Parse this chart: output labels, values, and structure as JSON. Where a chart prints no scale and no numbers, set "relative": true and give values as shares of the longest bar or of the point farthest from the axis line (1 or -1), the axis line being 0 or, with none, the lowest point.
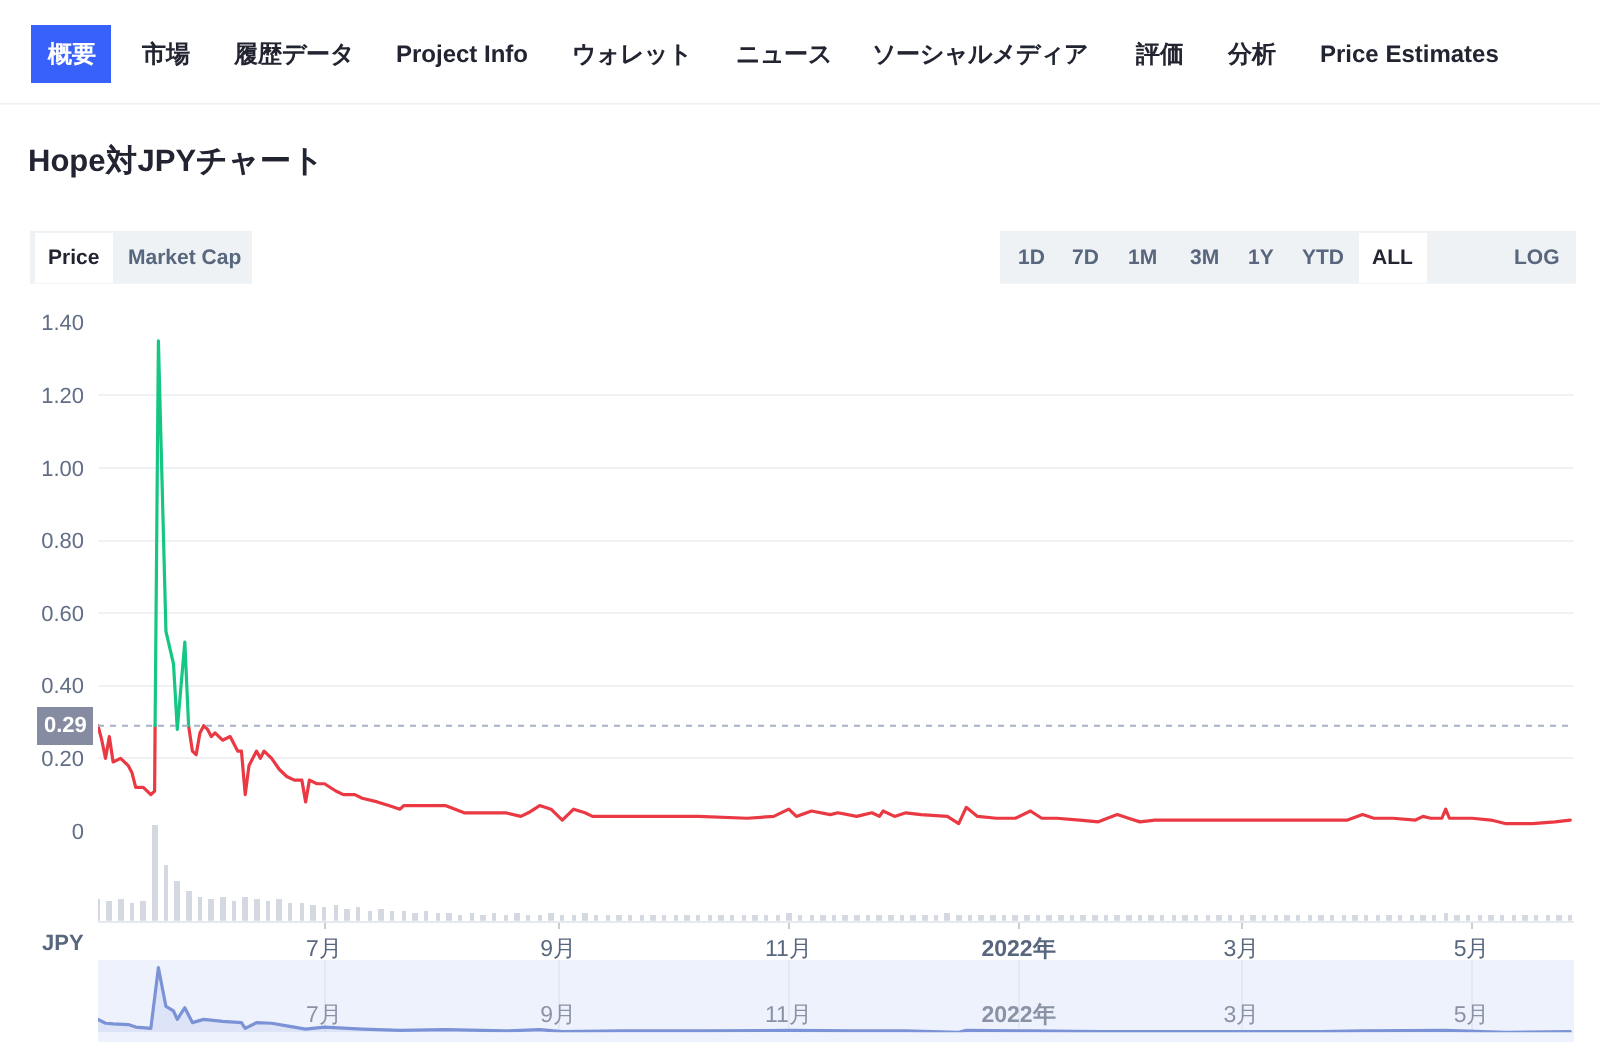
{
  "chart_data": [
    {
      "type": "other",
      "annotations": [
        "概要",
        "市場",
        "履歴データ",
        "Project Info",
        "ウォレット",
        "ニュース",
        "ソーシャルメディア",
        "評価",
        "分析",
        "Price Estimates"
      ]
    },
    {
      "type": "line",
      "title": "Hope対JPYチャート",
      "annotations": [
        "Price",
        "Market Cap",
        "1D",
        "7D",
        "1M",
        "3M",
        "1Y",
        "YTD",
        "ALL",
        "LOG"
      ],
      "xlim": [
        "2021-05-02",
        "2022-05-28"
      ],
      "ylim": [
        0,
        1.4
      ],
      "yticks": [
        0,
        {
          "value": 0.2,
          "label": "0.20"
        },
        {
          "value": 0.4,
          "label": "0.40"
        },
        {
          "value": 0.6,
          "label": "0.60"
        },
        {
          "value": 0.8,
          "label": "0.80"
        },
        {
          "value": 1.0,
          "label": "1.00"
        },
        {
          "value": 1.2,
          "label": "1.20"
        },
        {
          "value": 1.4,
          "label": "1.40"
        }
      ],
      "grid": "y",
      "tick_labels": "y",
      "ref_lines": [
        {
          "axis": "y",
          "value": 0.29,
          "label": "0.29",
          "line_style": "dotted",
          "color": "#a6b0c3"
        }
      ],
      "series": [
        {
          "color": "#ea3943",
          "x": [
            "2021-05-02",
            "2021-05-03",
            "2021-05-04",
            "2021-05-05",
            "2021-05-06",
            "2021-05-08",
            "2021-05-10",
            "2021-05-11",
            "2021-05-12",
            "2021-05-14",
            "2021-05-16",
            "2021-05-17",
            "2021-05-17T03:00",
            "2021-05-20",
            "2021-05-26",
            "2021-05-27",
            "2021-05-28",
            "2021-05-29",
            "2021-05-30",
            "2021-05-31",
            "2021-06-01",
            "2021-06-02",
            "2021-06-04",
            "2021-06-06",
            "2021-06-08",
            "2021-06-09",
            "2021-06-10",
            "2021-06-11",
            "2021-06-13",
            "2021-06-14",
            "2021-06-15",
            "2021-06-17",
            "2021-06-19",
            "2021-06-21",
            "2021-06-23",
            "2021-06-25",
            "2021-06-26",
            "2021-06-27",
            "2021-06-29",
            "2021-07-01",
            "2021-07-04",
            "2021-07-06",
            "2021-07-09",
            "2021-07-11",
            "2021-07-15",
            "2021-07-18",
            "2021-07-21",
            "2021-07-22",
            "2021-07-28",
            "2021-08-02",
            "2021-08-07",
            "2021-08-13",
            "2021-08-18",
            "2021-08-22",
            "2021-08-24",
            "2021-08-27",
            "2021-08-30",
            "2021-09-02",
            "2021-09-05",
            "2021-09-08",
            "2021-09-10",
            "2021-09-18",
            "2021-09-27",
            "2021-10-08",
            "2021-10-21",
            "2021-10-28",
            "2021-11-01",
            "2021-11-03",
            "2021-11-07",
            "2021-11-12",
            "2021-11-14",
            "2021-11-19",
            "2021-11-23",
            "2021-11-25",
            "2021-11-26",
            "2021-11-29",
            "2021-12-02",
            "2021-12-06",
            "2021-12-13",
            "2021-12-16",
            "2021-12-18",
            "2021-12-21",
            "2021-12-26",
            "2021-12-31",
            "2022-01-04",
            "2022-01-07",
            "2022-01-11",
            "2022-01-17",
            "2022-01-22",
            "2022-01-27",
            "2022-01-30",
            "2022-02-02",
            "2022-02-06",
            "2022-02-17",
            "2022-02-28",
            "2022-03-11",
            "2022-03-22",
            "2022-03-29",
            "2022-04-02",
            "2022-04-05",
            "2022-04-10",
            "2022-04-16",
            "2022-04-18",
            "2022-04-20",
            "2022-04-23",
            "2022-04-24",
            "2022-04-25",
            "2022-05-01",
            "2022-05-06",
            "2022-05-10",
            "2022-05-17",
            "2022-05-23",
            "2022-05-27"
          ],
          "values": [
            0.29,
            0.25,
            0.2,
            0.26,
            0.19,
            0.2,
            0.18,
            0.16,
            0.12,
            0.12,
            0.1,
            0.11,
            0.29,
            null,
            0.29,
            0.22,
            0.21,
            0.27,
            0.29,
            0.28,
            0.26,
            0.27,
            0.25,
            0.26,
            0.22,
            0.22,
            0.1,
            0.18,
            0.22,
            0.2,
            0.22,
            0.2,
            0.17,
            0.15,
            0.14,
            0.14,
            0.08,
            0.14,
            0.13,
            0.13,
            0.11,
            0.1,
            0.1,
            0.09,
            0.08,
            0.07,
            0.06,
            0.07,
            0.07,
            0.07,
            0.05,
            0.05,
            0.05,
            0.04,
            0.05,
            0.07,
            0.06,
            0.03,
            0.06,
            0.05,
            0.04,
            0.04,
            0.04,
            0.04,
            0.035,
            0.04,
            0.06,
            0.04,
            0.055,
            0.045,
            0.05,
            0.04,
            0.05,
            0.04,
            0.055,
            0.04,
            0.05,
            0.045,
            0.04,
            0.02,
            0.065,
            0.04,
            0.035,
            0.035,
            0.055,
            0.035,
            0.035,
            0.03,
            0.025,
            0.045,
            0.035,
            0.025,
            0.03,
            0.03,
            0.03,
            0.03,
            0.03,
            0.03,
            0.045,
            0.035,
            0.035,
            0.03,
            0.04,
            0.035,
            0.035,
            0.06,
            0.035,
            0.035,
            0.03,
            0.02,
            0.02,
            0.025,
            0.03
          ]
        },
        {
          "color": "#16c784",
          "x": [
            "2021-05-17T03:00",
            "2021-05-18",
            "2021-05-20",
            "2021-05-22",
            "2021-05-23",
            "2021-05-25",
            "2021-05-26"
          ],
          "values": [
            0.29,
            1.35,
            0.55,
            0.46,
            0.28,
            0.52,
            0.29
          ]
        }
      ]
    },
    {
      "type": "bar",
      "relative": true,
      "color": "#d3d8e1",
      "annotations": [
        "JPY"
      ],
      "tick_labels": "x",
      "xlim": [
        "2021-05-02",
        "2022-05-28"
      ],
      "xticks": [
        {
          "value": "2021-07-01",
          "label": "7月"
        },
        {
          "value": "2021-09-01",
          "label": "9月"
        },
        {
          "value": "2021-11-01",
          "label": "11月"
        },
        {
          "value": "2022-01-01",
          "label": "2022年"
        },
        {
          "value": "2022-03-01",
          "label": "3月"
        },
        {
          "value": "2022-05-01",
          "label": "5月"
        }
      ],
      "x": [
        "2021-05-02",
        "2021-05-05",
        "2021-05-08",
        "2021-05-11",
        "2021-05-14",
        "2021-05-17",
        "2021-05-20",
        "2021-05-23",
        "2021-05-26",
        "2021-05-29",
        "2021-06-01",
        "2021-06-04",
        "2021-06-07",
        "2021-06-10",
        "2021-06-13",
        "2021-06-16",
        "2021-06-19",
        "2021-06-22",
        "2021-06-25",
        "2021-06-28",
        "2021-07-01",
        "2021-07-04",
        "2021-07-07",
        "2021-07-10",
        "2021-07-13",
        "2021-07-16",
        "2021-07-19",
        "2021-07-22",
        "2021-07-25",
        "2021-07-28",
        "2021-07-31",
        "2021-08-03",
        "2021-08-06",
        "2021-08-09",
        "2021-08-12",
        "2021-08-15",
        "2021-08-18",
        "2021-08-21",
        "2021-08-24",
        "2021-08-27",
        "2021-08-30",
        "2021-09-02",
        "2021-09-05",
        "2021-09-08",
        "2021-09-11",
        "2021-09-14",
        "2021-09-17",
        "2021-09-20",
        "2021-09-23",
        "2021-09-26",
        "2021-09-29",
        "2021-10-02",
        "2021-10-05",
        "2021-10-08",
        "2021-10-11",
        "2021-10-14",
        "2021-10-17",
        "2021-10-20",
        "2021-10-23",
        "2021-10-26",
        "2021-10-29",
        "2021-11-01",
        "2021-11-04",
        "2021-11-07",
        "2021-11-10",
        "2021-11-13",
        "2021-11-16",
        "2021-11-19",
        "2021-11-22",
        "2021-11-25",
        "2021-11-28",
        "2021-12-01",
        "2021-12-04",
        "2021-12-07",
        "2021-12-10",
        "2021-12-13",
        "2021-12-16",
        "2021-12-19",
        "2021-12-22",
        "2021-12-25",
        "2021-12-28",
        "2021-12-31",
        "2022-01-03",
        "2022-01-06",
        "2022-01-09",
        "2022-01-12",
        "2022-01-15",
        "2022-01-18",
        "2022-01-21",
        "2022-01-24",
        "2022-01-27",
        "2022-01-30",
        "2022-02-02",
        "2022-02-05",
        "2022-02-08",
        "2022-02-11",
        "2022-02-14",
        "2022-02-17",
        "2022-02-20",
        "2022-02-23",
        "2022-02-26",
        "2022-03-01",
        "2022-03-04",
        "2022-03-07",
        "2022-03-10",
        "2022-03-13",
        "2022-03-16",
        "2022-03-19",
        "2022-03-22",
        "2022-03-25",
        "2022-03-28",
        "2022-03-31",
        "2022-04-03",
        "2022-04-06",
        "2022-04-09",
        "2022-04-12",
        "2022-04-15",
        "2022-04-18",
        "2022-04-21",
        "2022-04-24",
        "2022-04-27",
        "2022-04-30",
        "2022-05-03",
        "2022-05-06",
        "2022-05-09",
        "2022-05-12",
        "2022-05-15",
        "2022-05-18",
        "2022-05-21",
        "2022-05-24",
        "2022-05-27"
      ],
      "values": [
        0.22,
        0.2,
        0.23,
        0.18,
        0.21,
        1.0,
        0.58,
        0.42,
        0.3,
        0.24,
        0.23,
        0.25,
        0.21,
        0.24,
        0.22,
        0.2,
        0.23,
        0.19,
        0.18,
        0.17,
        0.15,
        0.16,
        0.12,
        0.14,
        0.11,
        0.12,
        0.1,
        0.11,
        0.09,
        0.1,
        0.08,
        0.09,
        0.07,
        0.08,
        0.07,
        0.09,
        0.06,
        0.08,
        0.07,
        0.06,
        0.08,
        0.07,
        0.06,
        0.08,
        0.06,
        0.07,
        0.05,
        0.06,
        0.07,
        0.05,
        0.06,
        0.06,
        0.05,
        0.07,
        0.06,
        0.05,
        0.06,
        0.05,
        0.07,
        0.06,
        0.05,
        0.08,
        0.06,
        0.05,
        0.07,
        0.06,
        0.05,
        0.06,
        0.07,
        0.05,
        0.06,
        0.05,
        0.06,
        0.07,
        0.05,
        0.08,
        0.06,
        0.05,
        0.06,
        0.05,
        0.06,
        0.05,
        0.06,
        0.05,
        0.06,
        0.05,
        0.05,
        0.06,
        0.05,
        0.07,
        0.05,
        0.05,
        0.05,
        0.06,
        0.05,
        0.05,
        0.06,
        0.05,
        0.05,
        0.06,
        0.05,
        0.05,
        0.06,
        0.05,
        0.05,
        0.06,
        0.05,
        0.05,
        0.06,
        0.05,
        0.05,
        0.06,
        0.07,
        0.05,
        0.06,
        0.05,
        0.06,
        0.05,
        0.06,
        0.08,
        0.05,
        0.06,
        0.07,
        0.05,
        0.06,
        0.05,
        0.05,
        0.06,
        0.05,
        0.05,
        0.06
      ]
    },
    {
      "type": "area",
      "relative": true,
      "color": "#7b93d6",
      "tick_labels": "x",
      "grid": "x",
      "xlim": [
        "2021-05-02",
        "2022-05-28"
      ],
      "xticks": [
        {
          "value": "2021-07-01",
          "label": "7月"
        },
        {
          "value": "2021-09-01",
          "label": "9月"
        },
        {
          "value": "2021-11-01",
          "label": "11月"
        },
        {
          "value": "2022-01-01",
          "label": "2022年"
        },
        {
          "value": "2022-03-01",
          "label": "3月"
        },
        {
          "value": "2022-05-01",
          "label": "5月"
        }
      ],
      "x": [
        "2021-05-02",
        "2021-05-04",
        "2021-05-06",
        "2021-05-10",
        "2021-05-12",
        "2021-05-16",
        "2021-05-18",
        "2021-05-20",
        "2021-05-22",
        "2021-05-23",
        "2021-05-25",
        "2021-05-27",
        "2021-05-30",
        "2021-06-04",
        "2021-06-09",
        "2021-06-10",
        "2021-06-13",
        "2021-06-17",
        "2021-06-21",
        "2021-06-26",
        "2021-07-01",
        "2021-07-11",
        "2021-07-21",
        "2021-08-02",
        "2021-08-18",
        "2021-08-27",
        "2021-09-02",
        "2021-09-18",
        "2021-10-08",
        "2021-11-01",
        "2021-11-19",
        "2021-12-02",
        "2021-12-16",
        "2021-12-18",
        "2022-01-04",
        "2022-01-22",
        "2022-02-17",
        "2022-03-22",
        "2022-04-02",
        "2022-04-24",
        "2022-05-10",
        "2022-05-27"
      ],
      "values": [
        0.2,
        0.14,
        0.13,
        0.12,
        0.08,
        0.06,
        1.0,
        0.4,
        0.33,
        0.2,
        0.38,
        0.15,
        0.2,
        0.17,
        0.15,
        0.06,
        0.15,
        0.14,
        0.1,
        0.05,
        0.08,
        0.05,
        0.03,
        0.04,
        0.02,
        0.04,
        0.01,
        0.02,
        0.02,
        0.03,
        0.02,
        0.02,
        0.0,
        0.03,
        0.02,
        0.01,
        0.01,
        0.01,
        0.02,
        0.03,
        0.0,
        0.01
      ]
    }
  ]
}
